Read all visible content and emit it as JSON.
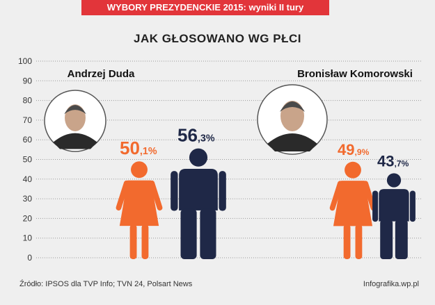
{
  "banner": "WYBORY PREZYDENCKIE 2015: wyniki II tury",
  "title": "JAK GŁOSOWANO WG PŁCI",
  "colors": {
    "women": "#f26a2e",
    "men": "#1f2847",
    "banner": "#e2353a"
  },
  "chart_data": {
    "type": "bar",
    "title": "JAK GŁOSOWANO WG PŁCI",
    "ylim": [
      0,
      100
    ],
    "yticks": [
      "100",
      "90",
      "80",
      "70",
      "60",
      "50",
      "40",
      "30",
      "20",
      "10",
      "0"
    ],
    "grid": true,
    "candidates": [
      {
        "name": "Andrzej Duda",
        "photo_icon": "candidate-portrait-icon",
        "women": {
          "value": 50.1,
          "int": "50",
          "dec": ",1%"
        },
        "men": {
          "value": 56.3,
          "int": "56",
          "dec": ",3%"
        }
      },
      {
        "name": "Bronisław Komorowski",
        "photo_icon": "candidate-portrait-icon",
        "women": {
          "value": 49.9,
          "int": "49",
          "dec": ",9%"
        },
        "men": {
          "value": 43.7,
          "int": "43",
          "dec": ",7%"
        }
      }
    ]
  },
  "footer": {
    "source": "Źródło: IPSOS dla TVP Info; TVN 24, Polsart News",
    "credit": "Infografika.wp.pl"
  }
}
